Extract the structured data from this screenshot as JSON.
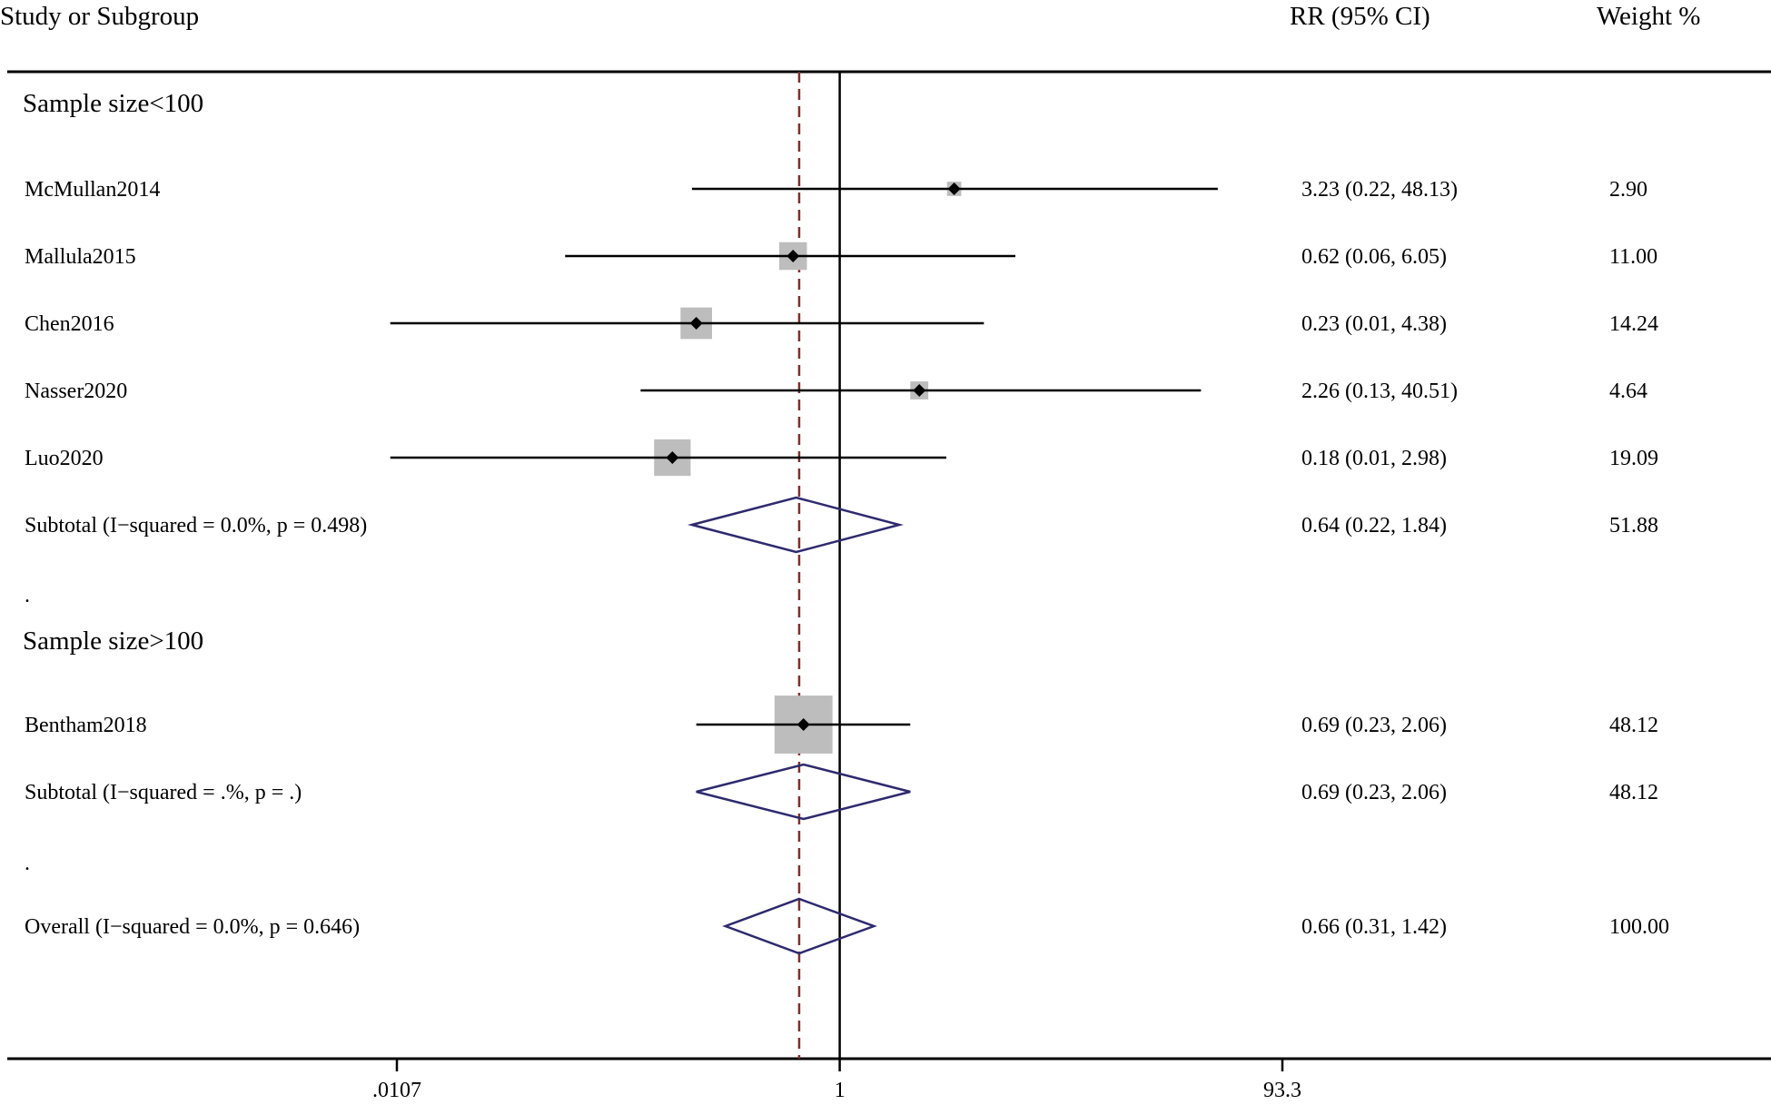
{
  "chart_data": {
    "type": "forest",
    "effect_measure": "RR",
    "x_scale": "log",
    "xlim": [
      0.0107,
      93.3
    ],
    "x_ticks": [
      {
        "value": 0.0107,
        "label": ".0107"
      },
      {
        "value": 1,
        "label": "1"
      },
      {
        "value": 93.3,
        "label": "93.3"
      }
    ],
    "null_line": 1,
    "overall_estimate_line": 0.66,
    "headers": {
      "study": "Study or Subgroup",
      "estimate": "RR (95% CI)",
      "weight": "Weight %"
    },
    "rows": [
      {
        "kind": "group",
        "label": "Sample size<100"
      },
      {
        "kind": "study",
        "label": "McMullan2014",
        "rr": 3.23,
        "lo": 0.22,
        "hi": 48.13,
        "ci_text": "3.23 (0.22, 48.13)",
        "weight": 2.9,
        "weight_text": "2.90"
      },
      {
        "kind": "study",
        "label": "Mallula2015",
        "rr": 0.62,
        "lo": 0.06,
        "hi": 6.05,
        "ci_text": "0.62 (0.06, 6.05)",
        "weight": 11.0,
        "weight_text": "11.00"
      },
      {
        "kind": "study",
        "label": "Chen2016",
        "rr": 0.23,
        "lo": 0.01,
        "hi": 4.38,
        "ci_text": "0.23 (0.01, 4.38)",
        "weight": 14.24,
        "weight_text": "14.24"
      },
      {
        "kind": "study",
        "label": "Nasser2020",
        "rr": 2.26,
        "lo": 0.13,
        "hi": 40.51,
        "ci_text": "2.26 (0.13, 40.51)",
        "weight": 4.64,
        "weight_text": "4.64"
      },
      {
        "kind": "study",
        "label": "Luo2020",
        "rr": 0.18,
        "lo": 0.01,
        "hi": 2.98,
        "ci_text": "0.18 (0.01, 2.98)",
        "weight": 19.09,
        "weight_text": "19.09"
      },
      {
        "kind": "subtotal",
        "label": "Subtotal  (I−squared = 0.0%, p = 0.498)",
        "rr": 0.64,
        "lo": 0.22,
        "hi": 1.84,
        "ci_text": "0.64 (0.22, 1.84)",
        "weight_text": "51.88"
      },
      {
        "kind": "spacer",
        "label": "."
      },
      {
        "kind": "group",
        "label": "Sample size>100"
      },
      {
        "kind": "study",
        "label": "Bentham2018",
        "rr": 0.69,
        "lo": 0.23,
        "hi": 2.06,
        "ci_text": "0.69 (0.23, 2.06)",
        "weight": 48.12,
        "weight_text": "48.12"
      },
      {
        "kind": "subtotal",
        "label": "Subtotal  (I−squared = .%, p = .)",
        "rr": 0.69,
        "lo": 0.23,
        "hi": 2.06,
        "ci_text": "0.69 (0.23, 2.06)",
        "weight_text": "48.12"
      },
      {
        "kind": "spacer",
        "label": "."
      },
      {
        "kind": "overall",
        "label": "Overall  (I−squared = 0.0%, p = 0.646)",
        "rr": 0.66,
        "lo": 0.31,
        "hi": 1.42,
        "ci_text": "0.66 (0.31, 1.42)",
        "weight_text": "100.00"
      }
    ],
    "colors": {
      "box": "#bdbdbd",
      "point": "#000000",
      "ci_line": "#000000",
      "diamond": "#2e2a6e",
      "estimate_line": "#8b2a2a",
      "axis": "#000000"
    }
  }
}
